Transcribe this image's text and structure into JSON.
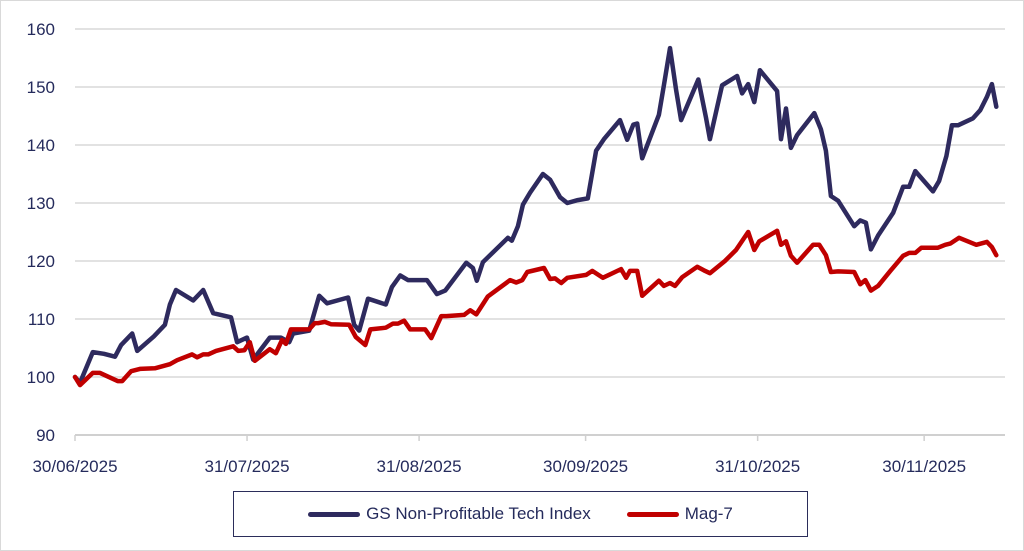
{
  "chart_data": {
    "type": "line",
    "title": "",
    "xlabel": "",
    "ylabel": "",
    "x_unit": "days since 30/06/2025",
    "ylim": [
      90,
      160
    ],
    "yticks": [
      90,
      100,
      110,
      120,
      130,
      140,
      150,
      160
    ],
    "xticks": [
      {
        "day": 0,
        "label": "30/06/2025"
      },
      {
        "day": 31,
        "label": "31/07/2025"
      },
      {
        "day": 62,
        "label": "31/08/2025"
      },
      {
        "day": 92,
        "label": "30/09/2025"
      },
      {
        "day": 123,
        "label": "31/10/2025"
      },
      {
        "day": 153,
        "label": "30/11/2025"
      }
    ],
    "grid": "horizontal",
    "legend_position": "bottom",
    "series": [
      {
        "name": "GS Non-Profitable Tech Index",
        "color": "#2E2A5E",
        "points": [
          [
            0,
            100
          ],
          [
            0.9,
            99
          ],
          [
            3.2,
            104.3
          ],
          [
            5.2,
            104
          ],
          [
            7.2,
            103.5
          ],
          [
            8.3,
            105.5
          ],
          [
            10.3,
            107.5
          ],
          [
            11.2,
            104.5
          ],
          [
            14.2,
            107
          ],
          [
            16.2,
            109
          ],
          [
            17.1,
            112.5
          ],
          [
            18.2,
            115
          ],
          [
            21.3,
            113.2
          ],
          [
            23.1,
            115
          ],
          [
            24.9,
            111
          ],
          [
            28.1,
            110.3
          ],
          [
            29.2,
            106
          ],
          [
            31,
            106.8
          ],
          [
            32.1,
            103
          ],
          [
            35.1,
            106.8
          ],
          [
            37.1,
            106.8
          ],
          [
            38.6,
            106
          ],
          [
            39.3,
            107.5
          ],
          [
            42.2,
            108
          ],
          [
            44,
            114
          ],
          [
            45.4,
            112.7
          ],
          [
            49.2,
            113.7
          ],
          [
            50.3,
            109
          ],
          [
            51.2,
            108
          ],
          [
            52.8,
            113.5
          ],
          [
            56,
            112.5
          ],
          [
            57.1,
            115.5
          ],
          [
            58.6,
            117.5
          ],
          [
            60,
            116.7
          ],
          [
            63.4,
            116.7
          ],
          [
            65.2,
            114.3
          ],
          [
            66.7,
            114.9
          ],
          [
            70.5,
            119.7
          ],
          [
            71.7,
            118.8
          ],
          [
            72.4,
            116.6
          ],
          [
            73.5,
            119.8
          ],
          [
            78,
            124
          ],
          [
            78.7,
            123.5
          ],
          [
            79.8,
            126
          ],
          [
            80.7,
            129.7
          ],
          [
            82,
            131.8
          ],
          [
            84.3,
            135
          ],
          [
            85.6,
            134
          ],
          [
            87.4,
            131
          ],
          [
            88.7,
            130
          ],
          [
            90.6,
            130.5
          ],
          [
            92.4,
            130.8
          ],
          [
            93.9,
            139
          ],
          [
            95.3,
            141
          ],
          [
            98.2,
            144.3
          ],
          [
            99.5,
            140.9
          ],
          [
            100.6,
            143.5
          ],
          [
            101.3,
            143.7
          ],
          [
            102.2,
            137.7
          ],
          [
            105.2,
            145.2
          ],
          [
            106.1,
            150.3
          ],
          [
            107.2,
            156.7
          ],
          [
            108.3,
            149.5
          ],
          [
            109.2,
            144.3
          ],
          [
            112.3,
            151.3
          ],
          [
            113.7,
            144.7
          ],
          [
            114.4,
            141
          ],
          [
            116.6,
            150.3
          ],
          [
            119.3,
            151.9
          ],
          [
            120.2,
            148.9
          ],
          [
            121.3,
            150.5
          ],
          [
            122.4,
            147.4
          ],
          [
            123.4,
            152.9
          ],
          [
            126.5,
            149.3
          ],
          [
            127.2,
            141
          ],
          [
            128.1,
            146.3
          ],
          [
            129,
            139.5
          ],
          [
            130.1,
            141.7
          ],
          [
            133.2,
            145.5
          ],
          [
            134.4,
            142.7
          ],
          [
            135.3,
            139
          ],
          [
            136.2,
            131.2
          ],
          [
            137.5,
            130.4
          ],
          [
            140.4,
            126
          ],
          [
            141.5,
            127
          ],
          [
            142.5,
            126.6
          ],
          [
            143.4,
            122
          ],
          [
            144.7,
            124.4
          ],
          [
            147.4,
            128.3
          ],
          [
            149.2,
            132.8
          ],
          [
            150.3,
            132.8
          ],
          [
            151.4,
            135.5
          ],
          [
            154.6,
            132
          ],
          [
            155.7,
            133.8
          ],
          [
            157,
            138.1
          ],
          [
            158,
            143.4
          ],
          [
            159.1,
            143.4
          ],
          [
            161.8,
            144.6
          ],
          [
            163.1,
            146
          ],
          [
            164.3,
            148.3
          ],
          [
            165.2,
            150.5
          ],
          [
            166,
            146.6
          ]
        ]
      },
      {
        "name": "Mag-7",
        "color": "#C00000",
        "points": [
          [
            0,
            100
          ],
          [
            0.9,
            98.6
          ],
          [
            3.2,
            100.7
          ],
          [
            4.5,
            100.7
          ],
          [
            7.7,
            99.3
          ],
          [
            8.5,
            99.3
          ],
          [
            10.1,
            101
          ],
          [
            11.7,
            101.4
          ],
          [
            14.4,
            101.5
          ],
          [
            17.1,
            102.2
          ],
          [
            18.4,
            102.9
          ],
          [
            21.1,
            103.9
          ],
          [
            22,
            103.4
          ],
          [
            23.1,
            103.9
          ],
          [
            24,
            103.9
          ],
          [
            25.4,
            104.5
          ],
          [
            28.5,
            105.3
          ],
          [
            29.4,
            104.5
          ],
          [
            30.5,
            104.6
          ],
          [
            31.5,
            106
          ],
          [
            32.4,
            102.8
          ],
          [
            35.1,
            104.8
          ],
          [
            36.2,
            104.1
          ],
          [
            37.3,
            106.4
          ],
          [
            38,
            105.7
          ],
          [
            38.9,
            108.2
          ],
          [
            42.2,
            108.2
          ],
          [
            43.2,
            109.3
          ],
          [
            43.8,
            109.3
          ],
          [
            45,
            109.5
          ],
          [
            46.1,
            109.1
          ],
          [
            49.4,
            109
          ],
          [
            50.6,
            106.9
          ],
          [
            52.3,
            105.5
          ],
          [
            53.2,
            108.2
          ],
          [
            56,
            108.5
          ],
          [
            57.3,
            109.2
          ],
          [
            58.2,
            109.2
          ],
          [
            59.3,
            109.7
          ],
          [
            60.4,
            108.2
          ],
          [
            63.1,
            108.2
          ],
          [
            64.2,
            106.7
          ],
          [
            66,
            110.5
          ],
          [
            66.9,
            110.5
          ],
          [
            70.1,
            110.7
          ],
          [
            71.2,
            111.5
          ],
          [
            72.3,
            110.8
          ],
          [
            74.4,
            113.9
          ],
          [
            78.4,
            116.7
          ],
          [
            79.5,
            116.3
          ],
          [
            80.6,
            116.7
          ],
          [
            81.5,
            118.1
          ],
          [
            84.5,
            118.8
          ],
          [
            85.6,
            116.9
          ],
          [
            86.5,
            117
          ],
          [
            87.6,
            116.2
          ],
          [
            88.7,
            117.1
          ],
          [
            92.1,
            117.6
          ],
          [
            93.2,
            118.3
          ],
          [
            95.1,
            117.1
          ],
          [
            98.4,
            118.6
          ],
          [
            99.3,
            117.1
          ],
          [
            100,
            118.3
          ],
          [
            101.3,
            118.3
          ],
          [
            102.2,
            114
          ],
          [
            105.2,
            116.6
          ],
          [
            106.1,
            115.7
          ],
          [
            107.2,
            116.2
          ],
          [
            108.1,
            115.7
          ],
          [
            109.4,
            117.2
          ],
          [
            112.1,
            119
          ],
          [
            113.3,
            118.4
          ],
          [
            114.4,
            117.9
          ],
          [
            117.1,
            120
          ],
          [
            119.1,
            121.9
          ],
          [
            121.3,
            125
          ],
          [
            122.4,
            121.9
          ],
          [
            123.3,
            123.4
          ],
          [
            126.5,
            125.2
          ],
          [
            127.2,
            122.8
          ],
          [
            128.1,
            123.4
          ],
          [
            129,
            120.9
          ],
          [
            130.1,
            119.7
          ],
          [
            133,
            122.8
          ],
          [
            134.1,
            122.8
          ],
          [
            135.3,
            121
          ],
          [
            136.2,
            118.1
          ],
          [
            137.5,
            118.2
          ],
          [
            140.4,
            118.1
          ],
          [
            141.5,
            116
          ],
          [
            142.4,
            116.7
          ],
          [
            143.4,
            114.9
          ],
          [
            144.7,
            115.7
          ],
          [
            146.9,
            118.3
          ],
          [
            149.2,
            120.9
          ],
          [
            150.3,
            121.4
          ],
          [
            151.4,
            121.4
          ],
          [
            152.5,
            122.3
          ],
          [
            155.5,
            122.3
          ],
          [
            156.8,
            122.8
          ],
          [
            157.7,
            123
          ],
          [
            159.3,
            124
          ],
          [
            162.4,
            122.8
          ],
          [
            164.3,
            123.3
          ],
          [
            165.2,
            122.4
          ],
          [
            166,
            121
          ]
        ]
      }
    ]
  },
  "legend": {
    "items": [
      "GS Non-Profitable Tech Index",
      "Mag-7"
    ]
  }
}
